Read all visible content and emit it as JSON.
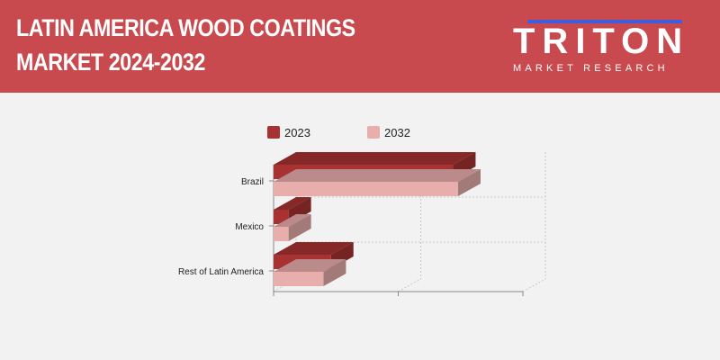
{
  "header": {
    "title_line1": "LATIN AMERICA WOOD COATINGS",
    "title_line2": "MARKET 2024-2032",
    "logo_text": "TRITON",
    "logo_subtext": "MARKET RESEARCH"
  },
  "colors": {
    "banner": "#c94a4e",
    "series_2023": "#a83232",
    "series_2032": "#e8aeac"
  },
  "chart_data": {
    "type": "bar",
    "orientation": "horizontal",
    "categories": [
      "Brazil",
      "Mexico",
      "Rest of Latin America"
    ],
    "series": [
      {
        "name": "2023",
        "values": [
          72,
          6,
          23
        ]
      },
      {
        "name": "2032",
        "values": [
          74,
          6,
          20
        ]
      }
    ],
    "xlim": [
      0,
      100
    ],
    "legend_position": "top",
    "grid": true,
    "style": "3d"
  }
}
